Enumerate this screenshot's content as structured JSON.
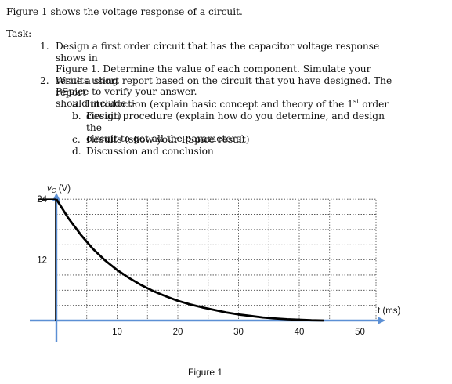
{
  "intro": "Figure 1 shows the voltage response of a circuit.",
  "task_heading": "Task:-",
  "tasks": [
    {
      "num": "1.",
      "lines": [
        "Design a first order circuit that has the capacitor voltage response shows in",
        "Figure 1. Determine the value of each component. Simulate your results using",
        "PSpice to verify your answer."
      ]
    },
    {
      "num": "2.",
      "lines": [
        "Write a short report based on the circuit that you have designed. The report",
        "should include :-"
      ]
    }
  ],
  "subitems": [
    {
      "num": "a.",
      "pre": "Introduction (explain basic concept and theory of the 1",
      "sup": "st",
      "post": " order circuit)"
    },
    {
      "num": "b.",
      "lines": [
        "Design procedure (explain how do you determine, and design the",
        "circuit to get all the parameters)"
      ]
    },
    {
      "num": "c.",
      "text": "Results (show your PSpice result)"
    },
    {
      "num": "d.",
      "text": "Discussion and conclusion"
    }
  ],
  "figure_caption": "Figure 1",
  "chart_data": {
    "type": "line",
    "ylabel": "vC (V)",
    "ylabel_main": "v",
    "ylabel_sub": "C",
    "ylabel_unit": " (V)",
    "xlabel": "t (ms)",
    "x_ticks": [
      "10",
      "20",
      "30",
      "40",
      "50"
    ],
    "y_ticks": [
      "24",
      "12"
    ],
    "xlim": [
      0,
      53
    ],
    "ylim": [
      0,
      24
    ],
    "grid": true,
    "series": [
      {
        "x": [
          0,
          2,
          4,
          6,
          8,
          10,
          12,
          14,
          16,
          18,
          20,
          22,
          24,
          26,
          28,
          30,
          32,
          34,
          36,
          38,
          40,
          42,
          44
        ],
        "values": [
          24,
          20.2,
          17.0,
          14.2,
          11.9,
          10.0,
          8.4,
          7.0,
          5.8,
          4.8,
          3.9,
          3.2,
          2.6,
          2.1,
          1.6,
          1.2,
          0.9,
          0.6,
          0.4,
          0.25,
          0.15,
          0.05,
          0.0
        ],
        "color": "#000000"
      }
    ],
    "initial_step": {
      "x": [
        0,
        0
      ],
      "values": [
        0,
        24
      ],
      "color": "#000000"
    },
    "axis_color": "#5b8fd4",
    "grid_color": "#444444"
  }
}
